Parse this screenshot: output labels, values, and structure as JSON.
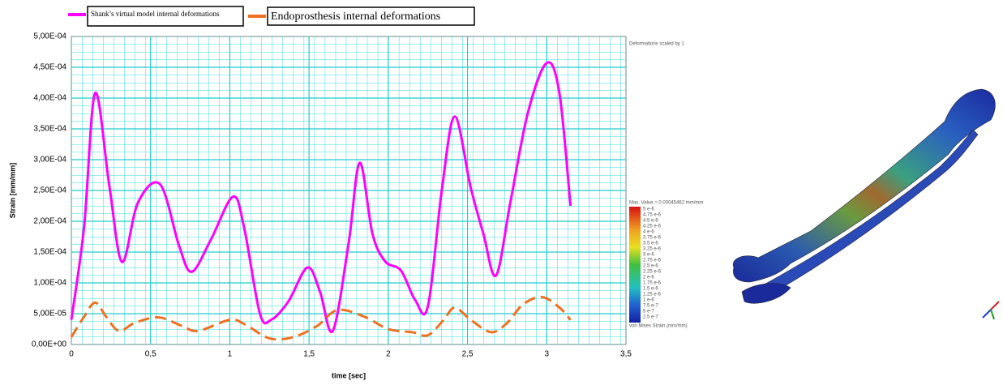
{
  "chart_data": {
    "type": "line",
    "xlabel": "time [sec]",
    "ylabel": "Strain [mm/mm]",
    "xlim": [
      0,
      3.5
    ],
    "ylim": [
      0,
      0.0005
    ],
    "xticks": [
      0,
      {
        "value": 0.5,
        "label": "0,5"
      },
      1,
      {
        "value": 1.5,
        "label": "1,5"
      },
      2,
      {
        "value": 2.5,
        "label": "2,5"
      },
      3,
      {
        "value": 3.5,
        "label": "3,5"
      }
    ],
    "yticks": [
      {
        "value": 0,
        "label": "0,00E+00"
      },
      {
        "value": 5e-05,
        "label": "5,00E-05"
      },
      {
        "value": 0.0001,
        "label": "1,00E-04"
      },
      {
        "value": 0.00015,
        "label": "1,50E-04"
      },
      {
        "value": 0.0002,
        "label": "2,00E-04"
      },
      {
        "value": 0.00025,
        "label": "2,50E-04"
      },
      {
        "value": 0.0003,
        "label": "3,00E-04"
      },
      {
        "value": 0.00035,
        "label": "3,50E-04"
      },
      {
        "value": 0.0004,
        "label": "4,00E-04"
      },
      {
        "value": 0.00045,
        "label": "4,50E-04"
      },
      {
        "value": 0.0005,
        "label": "5,00E-04"
      }
    ],
    "grid": true,
    "series": [
      {
        "name": "Shank’s virtual model internal deformations",
        "color": "#ff00ff",
        "dash": false,
        "x": [
          0,
          0.08,
          0.15,
          0.24,
          0.32,
          0.42,
          0.56,
          0.68,
          0.76,
          0.88,
          1.02,
          1.09,
          1.19,
          1.26,
          1.37,
          1.49,
          1.57,
          1.65,
          1.75,
          1.82,
          1.9,
          1.98,
          2.08,
          2.17,
          2.25,
          2.34,
          2.42,
          2.52,
          2.6,
          2.68,
          2.77,
          2.88,
          3.0,
          3.08,
          3.15
        ],
        "values": [
          4e-05,
          0.00019,
          0.000408,
          0.000257,
          0.000134,
          0.00023,
          0.00026,
          0.00016,
          0.000118,
          0.00017,
          0.00024,
          0.00019,
          5e-05,
          4e-05,
          7e-05,
          0.000125,
          8.5e-05,
          2.2e-05,
          0.000165,
          0.000295,
          0.00018,
          0.000135,
          0.00012,
          7.2e-05,
          6.2e-05,
          0.000255,
          0.00037,
          0.000255,
          0.00018,
          0.000112,
          0.00023,
          0.000375,
          0.000457,
          0.000408,
          0.000225
        ]
      },
      {
        "name": "Endoprosthesis internal deformations",
        "color": "#f07020",
        "dash": true,
        "x": [
          0,
          0.08,
          0.15,
          0.22,
          0.3,
          0.4,
          0.55,
          0.7,
          0.8,
          1.0,
          1.1,
          1.25,
          1.4,
          1.55,
          1.68,
          1.85,
          2.0,
          2.15,
          2.25,
          2.35,
          2.42,
          2.52,
          2.65,
          2.75,
          2.85,
          2.97,
          3.08,
          3.15
        ],
        "values": [
          1.2e-05,
          4.5e-05,
          6.8e-05,
          4.5e-05,
          2.2e-05,
          3.5e-05,
          4.4e-05,
          3e-05,
          2.2e-05,
          4e-05,
          3.2e-05,
          1e-05,
          1.2e-05,
          3e-05,
          5.6e-05,
          4.5e-05,
          2.5e-05,
          2e-05,
          1.5e-05,
          4e-05,
          6e-05,
          4e-05,
          2e-05,
          3.5e-05,
          6.5e-05,
          7.7e-05,
          6e-05,
          4e-05
        ]
      }
    ]
  },
  "fe_image": {
    "caption": "Deformations scaled by 1",
    "max_value": "Max. Value = 0.00045462 mm/mm",
    "quantity": "von Mises Strain (mm/mm)",
    "scale_labels": [
      "5 e-6",
      "4.75 e-6",
      "4.5 e-6",
      "4.25 e-6",
      "4 e-6",
      "3.75 e-6",
      "3.5 e-6",
      "3.25 e-6",
      "3 e-6",
      "2.75 e-6",
      "2.5 e-6",
      "2.25 e-6",
      "2 e-6",
      "1.75 e-6",
      "1.5 e-6",
      "1.25 e-6",
      "1 e-6",
      "7.5 e-7",
      "5 e-7",
      "2.5 e-7"
    ]
  }
}
